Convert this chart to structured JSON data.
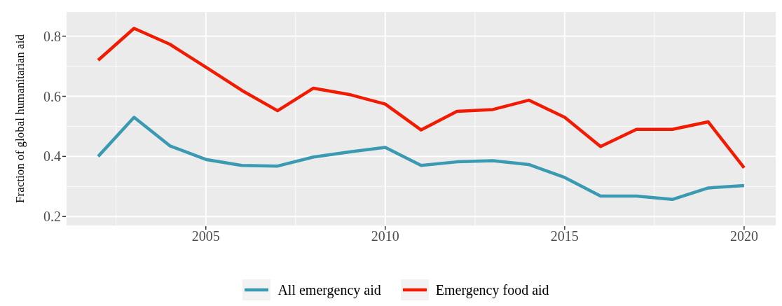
{
  "chart_data": {
    "type": "line",
    "ylabel": "Fraction of global humanitarian aid",
    "x": [
      2002,
      2003,
      2004,
      2005,
      2006,
      2007,
      2008,
      2009,
      2010,
      2011,
      2012,
      2013,
      2014,
      2015,
      2016,
      2017,
      2018,
      2019,
      2020
    ],
    "series": [
      {
        "name": "All emergency aid",
        "color": "#3a9ab2",
        "values": [
          0.4,
          0.53,
          0.435,
          0.39,
          0.37,
          0.368,
          0.398,
          0.415,
          0.43,
          0.37,
          0.382,
          0.386,
          0.373,
          0.33,
          0.268,
          0.268,
          0.257,
          0.295,
          0.303
        ]
      },
      {
        "name": "Emergency food aid",
        "color": "#f21a00",
        "values": [
          0.72,
          0.826,
          0.773,
          0.697,
          0.62,
          0.552,
          0.627,
          0.606,
          0.574,
          0.488,
          0.55,
          0.556,
          0.587,
          0.53,
          0.433,
          0.49,
          0.49,
          0.515,
          0.362
        ]
      }
    ],
    "xlim": [
      2001.1,
      2020.9
    ],
    "xticks": [
      2005,
      2010,
      2015,
      2020
    ],
    "ylim": [
      0.168,
      0.883
    ],
    "yticks": [
      0.2,
      0.4,
      0.6,
      0.8
    ],
    "grid": true,
    "legend": "bottom",
    "marker": "none",
    "line_style": "solid"
  }
}
